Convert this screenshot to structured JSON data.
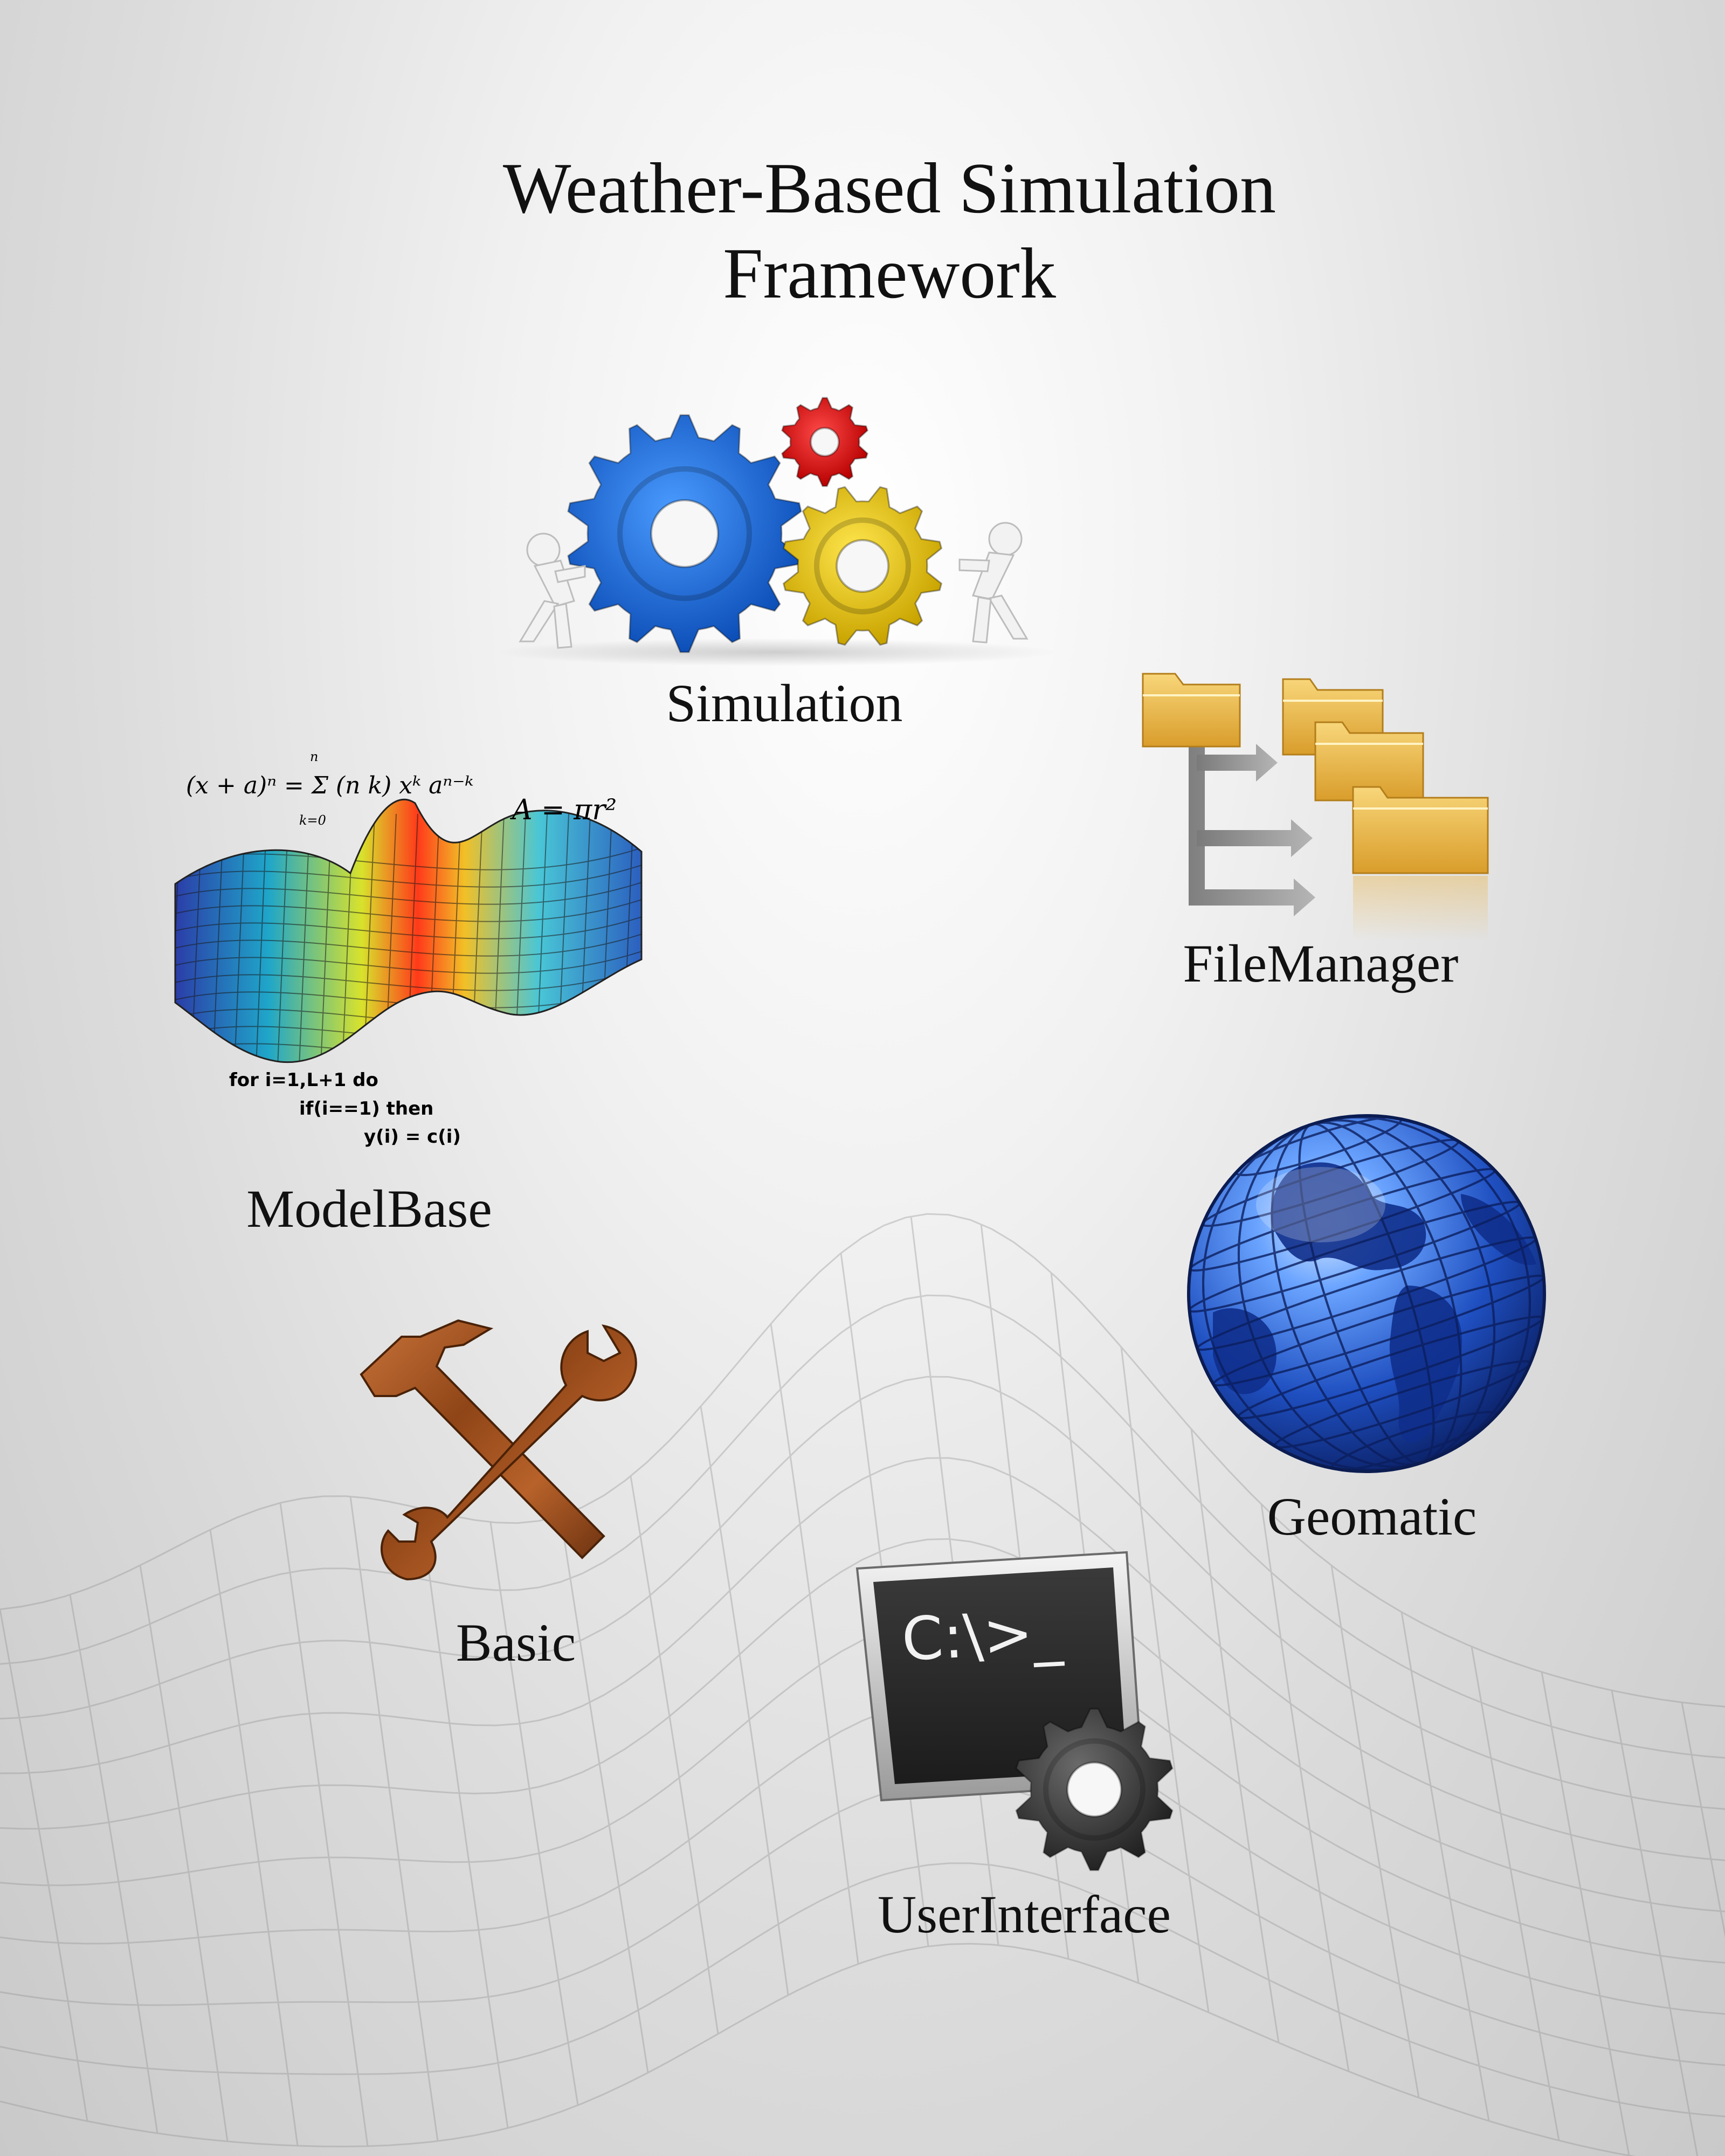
{
  "title": {
    "line1": "Weather-Based Simulation",
    "line2": "Framework"
  },
  "modules": {
    "simulation": {
      "label": "Simulation",
      "icon": "gears-icon"
    },
    "file_manager": {
      "label": "FileManager",
      "icon": "folders-icon"
    },
    "model_base": {
      "label": "ModelBase",
      "icon": "math-surface-icon",
      "formula_binomial": "(x + a)ⁿ = Σ (n k) xᵏ aⁿ⁻ᵏ",
      "formula_binomial_upper": "n",
      "formula_binomial_lower": "k=0",
      "formula_area": "A = πr²",
      "code_lines": [
        "for i=1,L+1 do",
        "if(i==1) then",
        "y(i) = c(i)"
      ]
    },
    "geomatic": {
      "label": "Geomatic",
      "icon": "globe-icon"
    },
    "basic": {
      "label": "Basic",
      "icon": "hammer-wrench-icon"
    },
    "user_interface": {
      "label": "UserInterface",
      "icon": "terminal-gear-icon",
      "prompt_text": "C:\\>_"
    }
  },
  "colors": {
    "gear_blue": "#1565d8",
    "gear_yellow": "#e8c400",
    "gear_red": "#e01010",
    "folder": "#e9b84a",
    "globe_blue": "#1f4fc0",
    "wood": "#a0521d",
    "terminal": "#2f2f2f"
  }
}
